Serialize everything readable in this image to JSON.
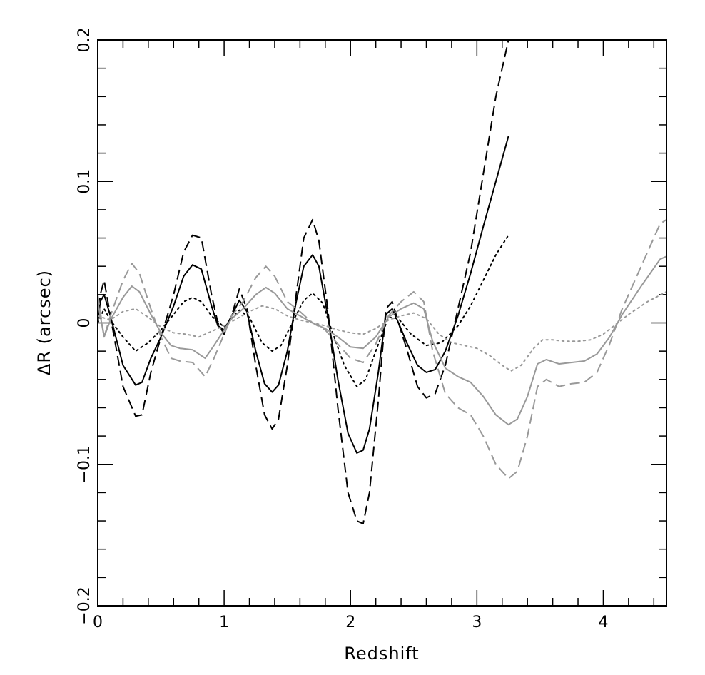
{
  "chart_data": {
    "type": "line",
    "title": "",
    "xlabel": "Redshift",
    "ylabel": "ΔR (arcsec)",
    "xlim": [
      0,
      4.5
    ],
    "ylim": [
      -0.2,
      0.2
    ],
    "grid": false,
    "legend": "none",
    "x_ticks": [
      {
        "value": 0,
        "label": "0"
      },
      {
        "value": 1,
        "label": "1"
      },
      {
        "value": 2,
        "label": "2"
      },
      {
        "value": 3,
        "label": "3"
      },
      {
        "value": 4,
        "label": "4"
      }
    ],
    "y_ticks": [
      {
        "value": -0.2,
        "label": "−0.2"
      },
      {
        "value": -0.1,
        "label": "−0.1"
      },
      {
        "value": 0,
        "label": "0"
      },
      {
        "value": 0.1,
        "label": "0.1"
      },
      {
        "value": 0.2,
        "label": "0.2"
      }
    ],
    "series": [
      {
        "color": "#000000",
        "dash": "dashed",
        "points": [
          [
            0,
            0
          ],
          [
            0.02,
            0.02
          ],
          [
            0.05,
            0.03
          ],
          [
            0.1,
            0.005
          ],
          [
            0.2,
            -0.045
          ],
          [
            0.3,
            -0.066
          ],
          [
            0.35,
            -0.065
          ],
          [
            0.42,
            -0.035
          ],
          [
            0.5,
            -0.01
          ],
          [
            0.6,
            0.02
          ],
          [
            0.68,
            0.05
          ],
          [
            0.75,
            0.062
          ],
          [
            0.82,
            0.06
          ],
          [
            0.9,
            0.02
          ],
          [
            0.95,
            0
          ],
          [
            1.0,
            -0.008
          ],
          [
            1.06,
            0.005
          ],
          [
            1.12,
            0.024
          ],
          [
            1.18,
            0.01
          ],
          [
            1.25,
            -0.03
          ],
          [
            1.32,
            -0.065
          ],
          [
            1.38,
            -0.075
          ],
          [
            1.43,
            -0.068
          ],
          [
            1.5,
            -0.03
          ],
          [
            1.57,
            0.02
          ],
          [
            1.63,
            0.06
          ],
          [
            1.7,
            0.073
          ],
          [
            1.75,
            0.058
          ],
          [
            1.82,
            0.01
          ],
          [
            1.9,
            -0.06
          ],
          [
            1.98,
            -0.12
          ],
          [
            2.05,
            -0.14
          ],
          [
            2.1,
            -0.142
          ],
          [
            2.15,
            -0.12
          ],
          [
            2.22,
            -0.055
          ],
          [
            2.28,
            0.01
          ],
          [
            2.33,
            0.015
          ],
          [
            2.38,
            0
          ],
          [
            2.45,
            -0.02
          ],
          [
            2.53,
            -0.045
          ],
          [
            2.6,
            -0.053
          ],
          [
            2.67,
            -0.05
          ],
          [
            2.75,
            -0.03
          ],
          [
            2.85,
            0.01
          ],
          [
            2.95,
            0.05
          ],
          [
            3.05,
            0.105
          ],
          [
            3.15,
            0.16
          ],
          [
            3.25,
            0.2
          ]
        ]
      },
      {
        "color": "#000000",
        "dash": "solid",
        "points": [
          [
            0,
            0
          ],
          [
            0.02,
            0.015
          ],
          [
            0.05,
            0.02
          ],
          [
            0.1,
            0.005
          ],
          [
            0.2,
            -0.03
          ],
          [
            0.3,
            -0.044
          ],
          [
            0.35,
            -0.042
          ],
          [
            0.42,
            -0.025
          ],
          [
            0.5,
            -0.01
          ],
          [
            0.6,
            0.012
          ],
          [
            0.68,
            0.033
          ],
          [
            0.75,
            0.041
          ],
          [
            0.82,
            0.038
          ],
          [
            0.9,
            0.012
          ],
          [
            0.95,
            -0.002
          ],
          [
            1.0,
            -0.005
          ],
          [
            1.06,
            0.005
          ],
          [
            1.12,
            0.016
          ],
          [
            1.18,
            0.008
          ],
          [
            1.25,
            -0.02
          ],
          [
            1.32,
            -0.043
          ],
          [
            1.38,
            -0.049
          ],
          [
            1.43,
            -0.044
          ],
          [
            1.5,
            -0.02
          ],
          [
            1.57,
            0.015
          ],
          [
            1.63,
            0.04
          ],
          [
            1.7,
            0.048
          ],
          [
            1.75,
            0.04
          ],
          [
            1.82,
            0.005
          ],
          [
            1.9,
            -0.04
          ],
          [
            1.98,
            -0.078
          ],
          [
            2.05,
            -0.092
          ],
          [
            2.1,
            -0.09
          ],
          [
            2.15,
            -0.075
          ],
          [
            2.22,
            -0.035
          ],
          [
            2.28,
            0.006
          ],
          [
            2.33,
            0.01
          ],
          [
            2.38,
            0
          ],
          [
            2.45,
            -0.015
          ],
          [
            2.53,
            -0.03
          ],
          [
            2.6,
            -0.035
          ],
          [
            2.67,
            -0.033
          ],
          [
            2.75,
            -0.02
          ],
          [
            2.85,
            0.005
          ],
          [
            2.95,
            0.035
          ],
          [
            3.05,
            0.068
          ],
          [
            3.15,
            0.1
          ],
          [
            3.25,
            0.132
          ]
        ]
      },
      {
        "color": "#000000",
        "dash": "dotted",
        "points": [
          [
            0,
            0
          ],
          [
            0.05,
            0.01
          ],
          [
            0.1,
            0.002
          ],
          [
            0.2,
            -0.01
          ],
          [
            0.3,
            -0.02
          ],
          [
            0.4,
            -0.014
          ],
          [
            0.5,
            -0.005
          ],
          [
            0.6,
            0.006
          ],
          [
            0.68,
            0.015
          ],
          [
            0.75,
            0.018
          ],
          [
            0.82,
            0.015
          ],
          [
            0.9,
            0.005
          ],
          [
            1.0,
            -0.003
          ],
          [
            1.06,
            0.003
          ],
          [
            1.12,
            0.009
          ],
          [
            1.2,
            0.004
          ],
          [
            1.3,
            -0.014
          ],
          [
            1.38,
            -0.02
          ],
          [
            1.45,
            -0.016
          ],
          [
            1.55,
            0.002
          ],
          [
            1.63,
            0.016
          ],
          [
            1.7,
            0.021
          ],
          [
            1.78,
            0.014
          ],
          [
            1.85,
            -0.005
          ],
          [
            1.95,
            -0.03
          ],
          [
            2.05,
            -0.045
          ],
          [
            2.12,
            -0.04
          ],
          [
            2.2,
            -0.02
          ],
          [
            2.3,
            0.004
          ],
          [
            2.38,
            0.003
          ],
          [
            2.48,
            -0.008
          ],
          [
            2.6,
            -0.016
          ],
          [
            2.72,
            -0.014
          ],
          [
            2.85,
            -0.002
          ],
          [
            2.95,
            0.012
          ],
          [
            3.05,
            0.03
          ],
          [
            3.15,
            0.048
          ],
          [
            3.25,
            0.062
          ]
        ]
      },
      {
        "color": "#999999",
        "dash": "dashed",
        "points": [
          [
            0,
            0.02
          ],
          [
            0.05,
            -0.01
          ],
          [
            0.1,
            0.005
          ],
          [
            0.2,
            0.03
          ],
          [
            0.27,
            0.042
          ],
          [
            0.33,
            0.035
          ],
          [
            0.42,
            0.01
          ],
          [
            0.5,
            -0.01
          ],
          [
            0.58,
            -0.025
          ],
          [
            0.65,
            -0.027
          ],
          [
            0.75,
            -0.028
          ],
          [
            0.85,
            -0.038
          ],
          [
            0.92,
            -0.025
          ],
          [
            1.0,
            -0.008
          ],
          [
            1.06,
            0.005
          ],
          [
            1.15,
            0.015
          ],
          [
            1.25,
            0.032
          ],
          [
            1.33,
            0.04
          ],
          [
            1.4,
            0.033
          ],
          [
            1.5,
            0.015
          ],
          [
            1.6,
            0.008
          ],
          [
            1.7,
            0
          ],
          [
            1.8,
            -0.005
          ],
          [
            1.9,
            -0.015
          ],
          [
            2.0,
            -0.025
          ],
          [
            2.1,
            -0.028
          ],
          [
            2.2,
            -0.015
          ],
          [
            2.3,
            0.005
          ],
          [
            2.4,
            0.015
          ],
          [
            2.5,
            0.022
          ],
          [
            2.58,
            0.015
          ],
          [
            2.65,
            -0.02
          ],
          [
            2.75,
            -0.05
          ],
          [
            2.85,
            -0.06
          ],
          [
            2.95,
            -0.065
          ],
          [
            3.05,
            -0.08
          ],
          [
            3.15,
            -0.1
          ],
          [
            3.25,
            -0.11
          ],
          [
            3.32,
            -0.105
          ],
          [
            3.4,
            -0.08
          ],
          [
            3.48,
            -0.045
          ],
          [
            3.55,
            -0.04
          ],
          [
            3.65,
            -0.045
          ],
          [
            3.75,
            -0.043
          ],
          [
            3.85,
            -0.042
          ],
          [
            3.95,
            -0.035
          ],
          [
            4.05,
            -0.015
          ],
          [
            4.15,
            0.01
          ],
          [
            4.3,
            0.04
          ],
          [
            4.45,
            0.07
          ],
          [
            4.5,
            0.073
          ]
        ]
      },
      {
        "color": "#999999",
        "dash": "solid",
        "points": [
          [
            0,
            0.015
          ],
          [
            0.05,
            -0.01
          ],
          [
            0.1,
            0.002
          ],
          [
            0.2,
            0.018
          ],
          [
            0.27,
            0.026
          ],
          [
            0.33,
            0.022
          ],
          [
            0.42,
            0.006
          ],
          [
            0.5,
            -0.007
          ],
          [
            0.58,
            -0.016
          ],
          [
            0.65,
            -0.018
          ],
          [
            0.75,
            -0.019
          ],
          [
            0.85,
            -0.025
          ],
          [
            0.92,
            -0.016
          ],
          [
            1.0,
            -0.005
          ],
          [
            1.06,
            0.003
          ],
          [
            1.15,
            0.01
          ],
          [
            1.25,
            0.02
          ],
          [
            1.33,
            0.025
          ],
          [
            1.4,
            0.021
          ],
          [
            1.5,
            0.01
          ],
          [
            1.6,
            0.005
          ],
          [
            1.7,
            0
          ],
          [
            1.8,
            -0.004
          ],
          [
            1.9,
            -0.01
          ],
          [
            2.0,
            -0.017
          ],
          [
            2.1,
            -0.018
          ],
          [
            2.2,
            -0.01
          ],
          [
            2.3,
            0.004
          ],
          [
            2.4,
            0.01
          ],
          [
            2.5,
            0.014
          ],
          [
            2.58,
            0.01
          ],
          [
            2.65,
            -0.013
          ],
          [
            2.75,
            -0.032
          ],
          [
            2.85,
            -0.038
          ],
          [
            2.95,
            -0.042
          ],
          [
            3.05,
            -0.052
          ],
          [
            3.15,
            -0.065
          ],
          [
            3.25,
            -0.072
          ],
          [
            3.32,
            -0.068
          ],
          [
            3.4,
            -0.052
          ],
          [
            3.48,
            -0.029
          ],
          [
            3.55,
            -0.026
          ],
          [
            3.65,
            -0.029
          ],
          [
            3.75,
            -0.028
          ],
          [
            3.85,
            -0.027
          ],
          [
            3.95,
            -0.022
          ],
          [
            4.05,
            -0.01
          ],
          [
            4.15,
            0.006
          ],
          [
            4.3,
            0.026
          ],
          [
            4.45,
            0.045
          ],
          [
            4.5,
            0.047
          ]
        ]
      },
      {
        "color": "#999999",
        "dash": "dotted",
        "points": [
          [
            0,
            0.005
          ],
          [
            0.1,
            0.002
          ],
          [
            0.2,
            0.008
          ],
          [
            0.3,
            0.01
          ],
          [
            0.4,
            0.004
          ],
          [
            0.5,
            -0.003
          ],
          [
            0.6,
            -0.007
          ],
          [
            0.7,
            -0.008
          ],
          [
            0.8,
            -0.01
          ],
          [
            0.9,
            -0.006
          ],
          [
            1.0,
            -0.002
          ],
          [
            1.1,
            0.003
          ],
          [
            1.2,
            0.008
          ],
          [
            1.3,
            0.012
          ],
          [
            1.4,
            0.01
          ],
          [
            1.5,
            0.005
          ],
          [
            1.6,
            0.002
          ],
          [
            1.7,
            0
          ],
          [
            1.8,
            -0.002
          ],
          [
            1.9,
            -0.005
          ],
          [
            2.0,
            -0.007
          ],
          [
            2.1,
            -0.008
          ],
          [
            2.2,
            -0.004
          ],
          [
            2.3,
            0.002
          ],
          [
            2.4,
            0.005
          ],
          [
            2.5,
            0.007
          ],
          [
            2.6,
            0.003
          ],
          [
            2.7,
            -0.008
          ],
          [
            2.8,
            -0.014
          ],
          [
            2.9,
            -0.016
          ],
          [
            3.0,
            -0.018
          ],
          [
            3.1,
            -0.023
          ],
          [
            3.2,
            -0.03
          ],
          [
            3.27,
            -0.034
          ],
          [
            3.35,
            -0.03
          ],
          [
            3.45,
            -0.018
          ],
          [
            3.52,
            -0.012
          ],
          [
            3.6,
            -0.012
          ],
          [
            3.7,
            -0.013
          ],
          [
            3.8,
            -0.013
          ],
          [
            3.9,
            -0.012
          ],
          [
            4.0,
            -0.008
          ],
          [
            4.1,
            -0.001
          ],
          [
            4.2,
            0.006
          ],
          [
            4.35,
            0.015
          ],
          [
            4.5,
            0.022
          ]
        ]
      }
    ]
  }
}
